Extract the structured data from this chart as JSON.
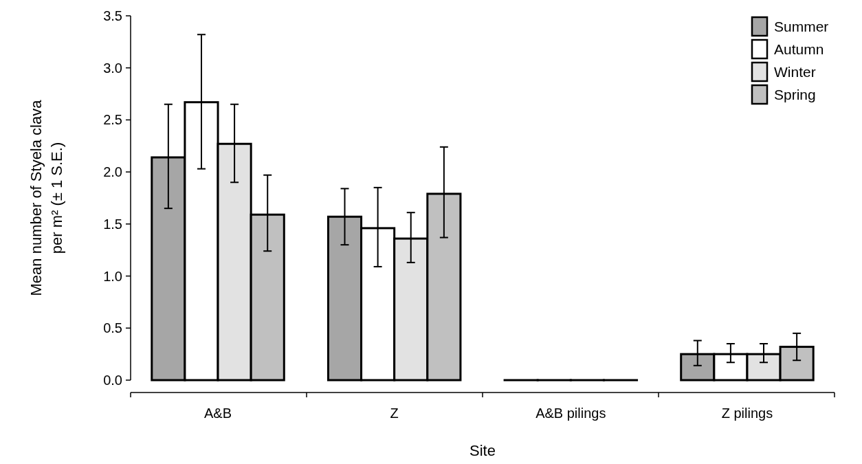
{
  "chart_data": {
    "type": "bar",
    "xlabel": "Site",
    "ylabel": "Mean number of Styela clava\nper m² (± 1 S.E.)",
    "categories": [
      "A&B",
      "Z",
      "A&B pilings",
      "Z pilings"
    ],
    "ylim": [
      0,
      3.5
    ],
    "yticks": [
      {
        "value": 0,
        "label": "0.0"
      },
      {
        "value": 0.5,
        "label": "0.5"
      },
      {
        "value": 1,
        "label": "1.0"
      },
      {
        "value": 1.5,
        "label": "1.5"
      },
      {
        "value": 2,
        "label": "2.0"
      },
      {
        "value": 2.5,
        "label": "2.5"
      },
      {
        "value": 3,
        "label": "3.0"
      },
      {
        "value": 3.5,
        "label": "3.5"
      }
    ],
    "grid": false,
    "legend": "top right",
    "series": [
      {
        "name": "Summer",
        "color": "#a6a6a6",
        "values": [
          2.14,
          1.57,
          0,
          0.25
        ],
        "errors": [
          [
            1.65,
            2.65
          ],
          [
            1.3,
            1.84
          ],
          null,
          [
            0.14,
            0.38
          ]
        ]
      },
      {
        "name": "Autumn",
        "color": "#ffffff",
        "values": [
          2.67,
          1.46,
          0,
          0.25
        ],
        "errors": [
          [
            2.03,
            3.32
          ],
          [
            1.09,
            1.85
          ],
          null,
          [
            0.17,
            0.35
          ]
        ]
      },
      {
        "name": "Winter",
        "color": "#e2e2e2",
        "values": [
          2.27,
          1.36,
          0,
          0.25
        ],
        "errors": [
          [
            1.9,
            2.65
          ],
          [
            1.13,
            1.61
          ],
          null,
          [
            0.17,
            0.35
          ]
        ]
      },
      {
        "name": "Spring",
        "color": "#c0c0c0",
        "values": [
          1.59,
          1.79,
          0,
          0.32
        ],
        "errors": [
          [
            1.24,
            1.97
          ],
          [
            1.37,
            2.24
          ],
          null,
          [
            0.19,
            0.45
          ]
        ]
      }
    ]
  }
}
